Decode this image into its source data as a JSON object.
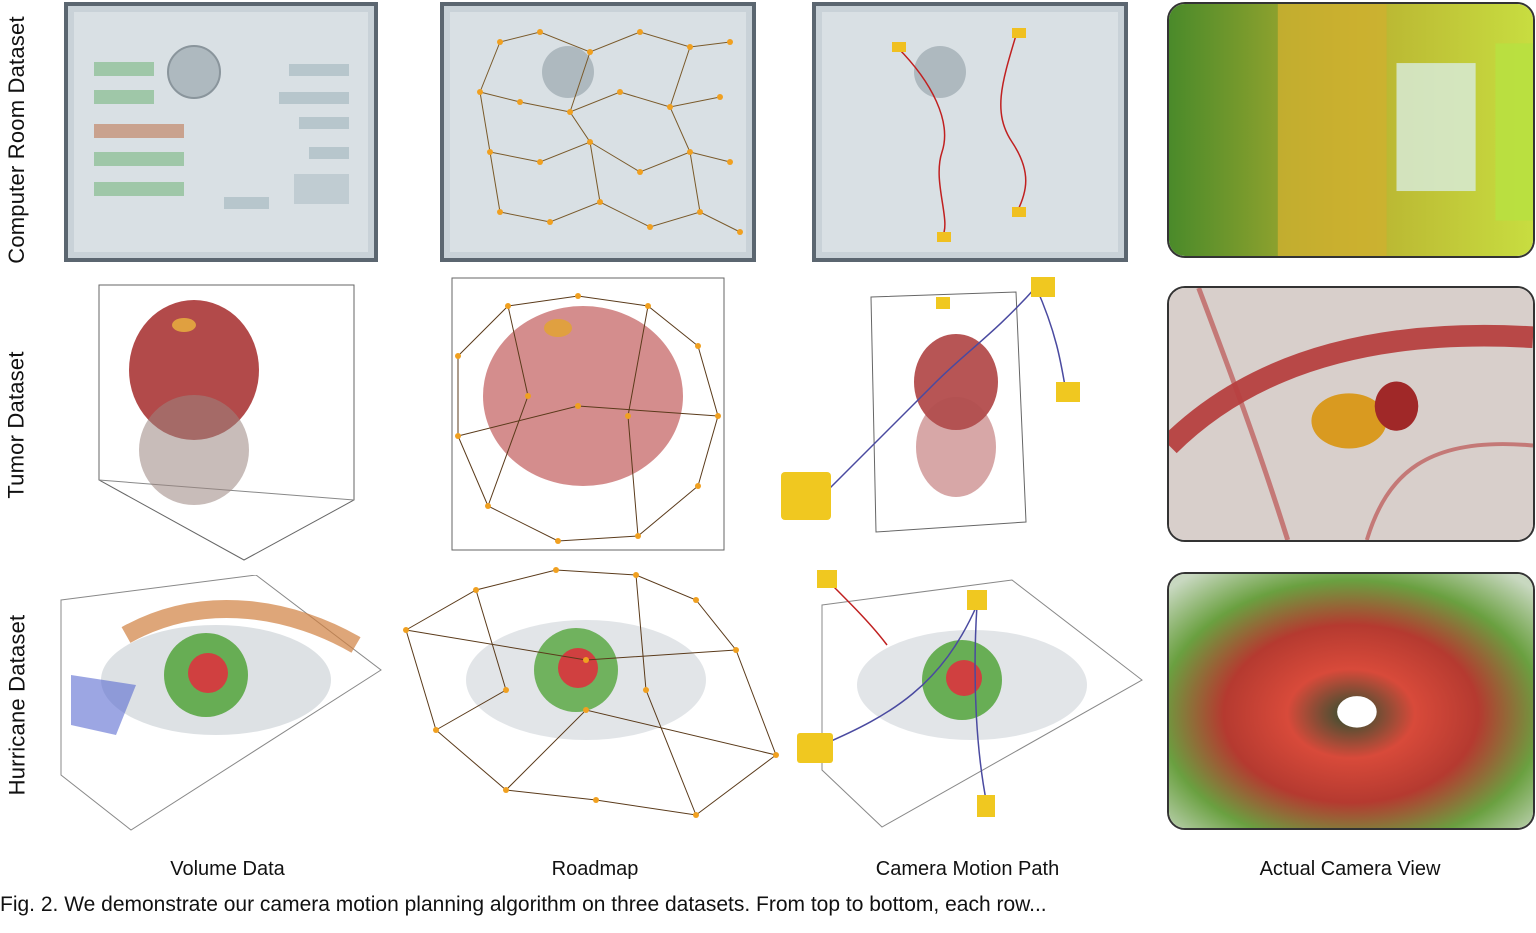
{
  "figure": {
    "row_labels": [
      "Computer Room Dataset",
      "Tumor Dataset",
      "Hurricane Dataset"
    ],
    "column_labels": [
      "Volume Data",
      "Roadmap",
      "Camera Motion Path",
      "Actual Camera View"
    ],
    "caption_fragment": "Fig. 2.  We demonstrate our camera motion planning algorithm on three datasets. From top to bottom, each row..."
  }
}
